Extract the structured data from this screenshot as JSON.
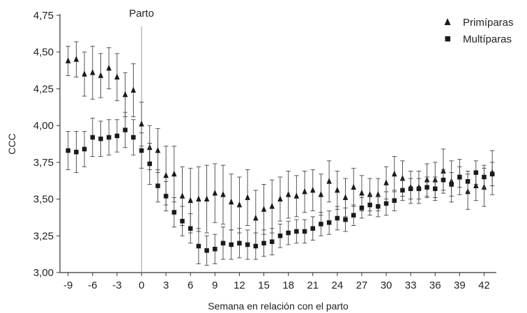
{
  "chart_data": {
    "type": "scatter",
    "title": "",
    "xlabel": "Semana en relación con el parto",
    "ylabel": "CCC",
    "xlim": [
      -10,
      43.5
    ],
    "ylim": [
      3.0,
      4.75
    ],
    "x_ticks": [
      -9,
      -6,
      -3,
      0,
      3,
      6,
      9,
      12,
      15,
      18,
      21,
      24,
      27,
      30,
      33,
      36,
      39,
      42
    ],
    "x_tick_labels": [
      "-9",
      "-6",
      "-3",
      "0",
      "3",
      "6",
      "9",
      "12",
      "15",
      "18",
      "21",
      "24",
      "27",
      "30",
      "33",
      "36",
      "39",
      "42"
    ],
    "y_ticks": [
      3.0,
      3.25,
      3.5,
      3.75,
      4.0,
      4.25,
      4.5,
      4.75
    ],
    "y_tick_labels": [
      "3,00",
      "3,25",
      "3,50",
      "3,75",
      "4,00",
      "4,25",
      "4,50",
      "4,75"
    ],
    "grid": false,
    "legend_position": "top-right",
    "annotation": {
      "x": 0,
      "label": "Parto"
    },
    "x": [
      -9,
      -8,
      -7,
      -6,
      -5,
      -4,
      -3,
      -2,
      -1,
      0,
      1,
      2,
      3,
      4,
      5,
      6,
      7,
      8,
      9,
      10,
      11,
      12,
      13,
      14,
      15,
      16,
      17,
      18,
      19,
      20,
      21,
      22,
      23,
      24,
      25,
      26,
      27,
      28,
      29,
      30,
      31,
      32,
      33,
      34,
      35,
      36,
      37,
      38,
      39,
      40,
      41,
      42,
      43
    ],
    "series": [
      {
        "name": "Primíparas",
        "marker": "triangle",
        "values": [
          4.44,
          4.45,
          4.35,
          4.36,
          4.34,
          4.39,
          4.33,
          4.21,
          4.24,
          4.01,
          3.85,
          3.83,
          3.66,
          3.67,
          3.52,
          3.49,
          3.5,
          3.5,
          3.54,
          3.53,
          3.48,
          3.46,
          3.51,
          3.37,
          3.43,
          3.45,
          3.5,
          3.53,
          3.52,
          3.55,
          3.56,
          3.53,
          3.62,
          3.56,
          3.51,
          3.58,
          3.54,
          3.53,
          3.53,
          3.61,
          3.67,
          3.64,
          3.58,
          3.58,
          3.63,
          3.63,
          3.69,
          3.62,
          3.65,
          3.55,
          3.59,
          3.58,
          3.68
        ],
        "error": [
          0.1,
          0.12,
          0.15,
          0.18,
          0.15,
          0.14,
          0.16,
          0.15,
          0.18,
          0.15,
          0.15,
          0.15,
          0.2,
          0.19,
          0.2,
          0.22,
          0.22,
          0.23,
          0.2,
          0.2,
          0.19,
          0.19,
          0.19,
          0.19,
          0.17,
          0.18,
          0.15,
          0.16,
          0.14,
          0.14,
          0.14,
          0.14,
          0.14,
          0.13,
          0.13,
          0.13,
          0.12,
          0.11,
          0.11,
          0.11,
          0.12,
          0.12,
          0.11,
          0.11,
          0.11,
          0.12,
          0.15,
          0.14,
          0.12,
          0.12,
          0.1,
          0.13,
          0.15
        ]
      },
      {
        "name": "Multíparas",
        "marker": "square",
        "values": [
          3.83,
          3.82,
          3.84,
          3.92,
          3.91,
          3.92,
          3.93,
          3.97,
          3.92,
          3.83,
          3.74,
          3.59,
          3.52,
          3.41,
          3.35,
          3.3,
          3.18,
          3.15,
          3.16,
          3.2,
          3.19,
          3.2,
          3.19,
          3.18,
          3.2,
          3.21,
          3.25,
          3.27,
          3.28,
          3.28,
          3.3,
          3.33,
          3.34,
          3.37,
          3.36,
          3.39,
          3.44,
          3.46,
          3.45,
          3.47,
          3.49,
          3.56,
          3.57,
          3.57,
          3.58,
          3.57,
          3.63,
          3.6,
          3.65,
          3.62,
          3.68,
          3.65,
          3.67
        ],
        "error": [
          0.13,
          0.14,
          0.12,
          0.13,
          0.12,
          0.12,
          0.11,
          0.12,
          0.12,
          0.12,
          0.14,
          0.11,
          0.1,
          0.1,
          0.1,
          0.1,
          0.12,
          0.1,
          0.1,
          0.11,
          0.1,
          0.1,
          0.1,
          0.09,
          0.09,
          0.09,
          0.08,
          0.08,
          0.08,
          0.08,
          0.08,
          0.08,
          0.08,
          0.08,
          0.08,
          0.07,
          0.07,
          0.07,
          0.07,
          0.08,
          0.07,
          0.07,
          0.07,
          0.07,
          0.07,
          0.08,
          0.07,
          0.08,
          0.07,
          0.07,
          0.08,
          0.08,
          0.08
        ]
      }
    ]
  }
}
